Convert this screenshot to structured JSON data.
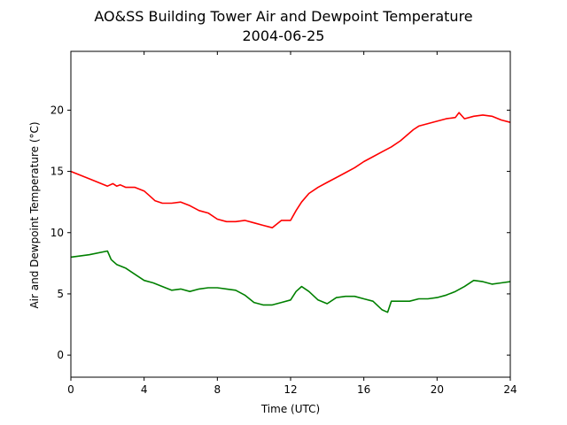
{
  "chart_data": {
    "type": "line",
    "title": "AO&SS Building Tower Air and Dewpoint Temperature",
    "subtitle": "2004-06-25",
    "xlabel": "Time (UTC)",
    "ylabel": "Air and Dewpoint Temperature (°C)",
    "xlim": [
      0,
      24
    ],
    "ylim": [
      -1.8,
      24.8
    ],
    "xticks": [
      0,
      4,
      8,
      12,
      16,
      20,
      24
    ],
    "yticks": [
      0,
      5,
      10,
      15,
      20
    ],
    "grid": false,
    "legend": "none",
    "series": [
      {
        "color": "#ff0000",
        "x": [
          0,
          1,
          2,
          2.3,
          2.5,
          2.7,
          3,
          3.5,
          4,
          4.3,
          4.6,
          5,
          5.5,
          6,
          6.5,
          7,
          7.5,
          8,
          8.5,
          9,
          9.5,
          10,
          10.5,
          11,
          11.5,
          12,
          12.3,
          12.6,
          13,
          13.5,
          14,
          14.5,
          15,
          15.5,
          16,
          16.5,
          17,
          17.5,
          18,
          18.7,
          19,
          19.5,
          20,
          20.5,
          21,
          21.2,
          21.5,
          22,
          22.5,
          23,
          23.5,
          24
        ],
        "y": [
          15.0,
          14.4,
          13.8,
          14.0,
          13.8,
          13.9,
          13.7,
          13.7,
          13.4,
          13.0,
          12.6,
          12.4,
          12.4,
          12.5,
          12.2,
          11.8,
          11.6,
          11.1,
          10.9,
          10.9,
          11.0,
          10.8,
          10.6,
          10.4,
          11.0,
          11.0,
          11.8,
          12.5,
          13.2,
          13.7,
          14.1,
          14.5,
          14.9,
          15.3,
          15.8,
          16.2,
          16.6,
          17.0,
          17.5,
          18.4,
          18.7,
          18.9,
          19.1,
          19.3,
          19.4,
          19.8,
          19.3,
          19.5,
          19.6,
          19.5,
          19.2,
          19.0
        ]
      },
      {
        "color": "#008000",
        "x": [
          0,
          1,
          2,
          2.2,
          2.5,
          3,
          3.5,
          4,
          4.5,
          5,
          5.5,
          6,
          6.5,
          7,
          7.5,
          8,
          8.5,
          9,
          9.5,
          10,
          10.5,
          11,
          11.5,
          12,
          12.3,
          12.6,
          13,
          13.5,
          14,
          14.5,
          15,
          15.5,
          16,
          16.5,
          17,
          17.3,
          17.5,
          18.5,
          19,
          19.5,
          20,
          20.5,
          21,
          21.5,
          22,
          22.5,
          23,
          23.5,
          24
        ],
        "y": [
          8.0,
          8.2,
          8.5,
          7.8,
          7.4,
          7.1,
          6.6,
          6.1,
          5.9,
          5.6,
          5.3,
          5.4,
          5.2,
          5.4,
          5.5,
          5.5,
          5.4,
          5.3,
          4.9,
          4.3,
          4.1,
          4.1,
          4.3,
          4.5,
          5.2,
          5.6,
          5.2,
          4.5,
          4.2,
          4.7,
          4.8,
          4.8,
          4.6,
          4.4,
          3.7,
          3.5,
          4.4,
          4.4,
          4.6,
          4.6,
          4.7,
          4.9,
          5.2,
          5.6,
          6.1,
          6.0,
          5.8,
          5.9,
          6.0
        ]
      }
    ]
  }
}
